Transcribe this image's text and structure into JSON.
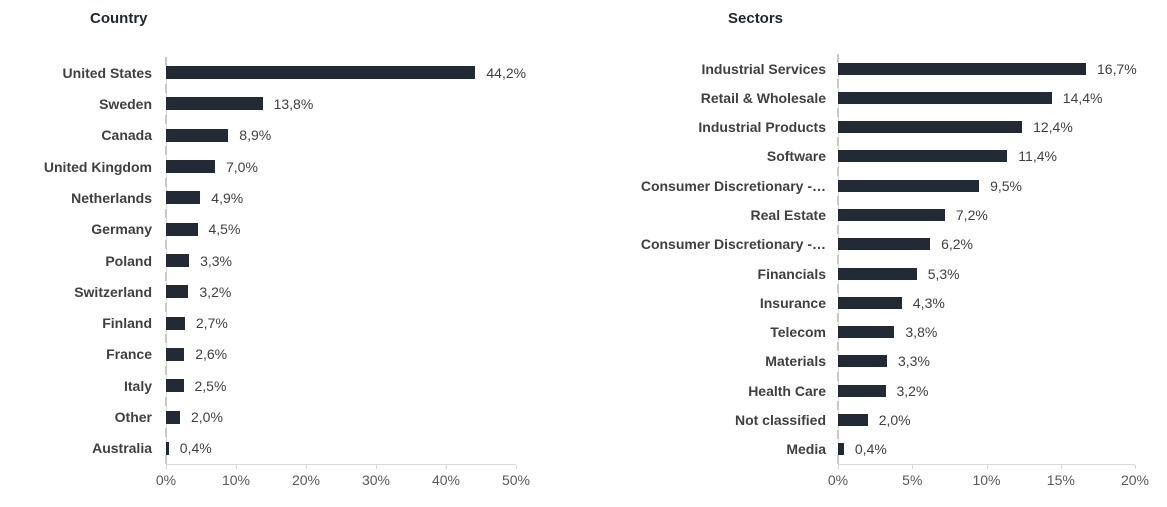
{
  "chart_data": [
    {
      "type": "bar",
      "orientation": "horizontal",
      "title": "Country",
      "categories": [
        "United States",
        "Sweden",
        "Canada",
        "United Kingdom",
        "Netherlands",
        "Germany",
        "Poland",
        "Switzerland",
        "Finland",
        "France",
        "Italy",
        "Other",
        "Australia"
      ],
      "values": [
        44.2,
        13.8,
        8.9,
        7.0,
        4.9,
        4.5,
        3.3,
        3.2,
        2.7,
        2.6,
        2.5,
        2.0,
        0.4
      ],
      "value_labels": [
        "44,2%",
        "13,8%",
        "8,9%",
        "7,0%",
        "4,9%",
        "4,5%",
        "3,3%",
        "3,2%",
        "2,7%",
        "2,6%",
        "2,5%",
        "2,0%",
        "0,4%"
      ],
      "xlabel": "",
      "ylabel": "",
      "xlim": [
        0,
        50
      ],
      "tick_values": [
        0,
        10,
        20,
        30,
        40,
        50
      ],
      "tick_labels": [
        "0%",
        "10%",
        "20%",
        "30%",
        "40%",
        "50%"
      ],
      "grid": false,
      "legend": false
    },
    {
      "type": "bar",
      "orientation": "horizontal",
      "title": "Sectors",
      "categories": [
        "Industrial Services",
        "Retail & Wholesale",
        "Industrial Products",
        "Software",
        "Consumer Discretionary -…",
        "Real Estate",
        "Consumer Discretionary -…",
        "Financials",
        "Insurance",
        "Telecom",
        "Materials",
        "Health Care",
        "Not classified",
        "Media"
      ],
      "values": [
        16.7,
        14.4,
        12.4,
        11.4,
        9.5,
        7.2,
        6.2,
        5.3,
        4.3,
        3.8,
        3.3,
        3.2,
        2.0,
        0.4
      ],
      "value_labels": [
        "16,7%",
        "14,4%",
        "12,4%",
        "11,4%",
        "9,5%",
        "7,2%",
        "6,2%",
        "5,3%",
        "4,3%",
        "3,8%",
        "3,3%",
        "3,2%",
        "2,0%",
        "0,4%"
      ],
      "xlabel": "",
      "ylabel": "",
      "xlim": [
        0,
        20
      ],
      "tick_values": [
        0,
        5,
        10,
        15,
        20
      ],
      "tick_labels": [
        "0%",
        "5%",
        "10%",
        "15%",
        "20%"
      ],
      "grid": false,
      "legend": false
    }
  ],
  "colors": {
    "bar": "#222B35",
    "category_label": "#404040",
    "value_label": "#404040",
    "tick_label": "#595959",
    "axis_line": "#D9D9D9",
    "title": "#1F2733",
    "background": "#FFFFFF"
  }
}
